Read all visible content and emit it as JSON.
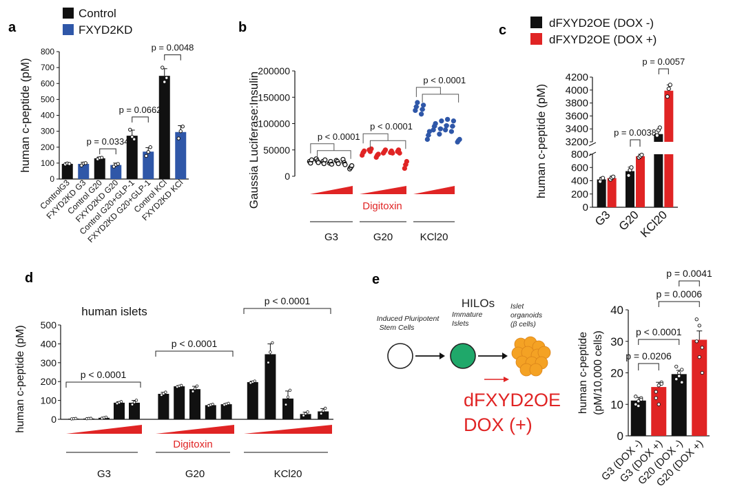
{
  "colors": {
    "black": "#111111",
    "blue": "#2f57a8",
    "red": "#e02424",
    "green": "#1fa86a",
    "orange": "#f4a224",
    "white": "#ffffff"
  },
  "chart_data": [
    {
      "panel": "a",
      "type": "bar",
      "ylabel": "human c-peptide (pM)",
      "ylim": [
        0,
        800
      ],
      "yticks": [
        0,
        100,
        200,
        300,
        400,
        500,
        600,
        700,
        800
      ],
      "legend": [
        {
          "name": "Control",
          "color": "#111111"
        },
        {
          "name": "FXYD2KD",
          "color": "#2f57a8"
        }
      ],
      "categories": [
        "ControlG3",
        "FXYD2KD G3",
        "Control G20",
        "FXYD2KD G20",
        "Control G20+GLP-1",
        "FXYD2KD G20+GLP-1",
        "Control KCl",
        "FXYD2KD KCl"
      ],
      "values": [
        95,
        95,
        130,
        88,
        272,
        172,
        648,
        295
      ],
      "errors": [
        8,
        10,
        8,
        12,
        35,
        25,
        45,
        40
      ],
      "series_of_bar": [
        "Control",
        "FXYD2KD",
        "Control",
        "FXYD2KD",
        "Control",
        "FXYD2KD",
        "Control",
        "FXYD2KD"
      ],
      "points": [
        [
          92,
          98,
          95
        ],
        [
          85,
          98,
          100
        ],
        [
          125,
          132,
          134
        ],
        [
          78,
          90,
          95
        ],
        [
          310,
          265,
          250
        ],
        [
          145,
          170,
          200
        ],
        [
          700,
          610,
          635
        ],
        [
          255,
          300,
          330
        ]
      ],
      "annotations": [
        {
          "text": "p = 0.0334",
          "from": 2,
          "to": 3,
          "level": 190
        },
        {
          "text": "p = 0.0662",
          "from": 4,
          "to": 5,
          "level": 390
        },
        {
          "text": "p = 0.0048",
          "from": 6,
          "to": 7,
          "level": 780
        }
      ]
    },
    {
      "panel": "b",
      "type": "scatter",
      "ylabel": "Gaussia Luciferase:Insulin",
      "ylim": [
        0,
        200000
      ],
      "yticks": [
        0,
        50000,
        100000,
        150000,
        200000
      ],
      "groups": [
        {
          "label": "G3",
          "color": "#111111",
          "values": [
            [
              28000,
              25000,
              31000
            ],
            [
              33000,
              29000,
              26000
            ],
            [
              28000,
              24000,
              31000
            ],
            [
              25000,
              28000,
              23000
            ],
            [
              30000,
              28000,
              24000
            ],
            [
              32000,
              26000,
              22000
            ],
            [
              14000,
              17000,
              20000
            ]
          ]
        },
        {
          "label": "G20",
          "color": "#e02424",
          "values": [
            [
              40000,
              45000,
              48000
            ],
            [
              50000,
              47000,
              52000
            ],
            [
              36000,
              40000,
              42000
            ],
            [
              44000,
              47000,
              50000
            ],
            [
              45000,
              48000,
              44000
            ],
            [
              47000,
              50000,
              44000
            ],
            [
              15000,
              22000,
              28000
            ]
          ]
        },
        {
          "label": "KCl20",
          "color": "#2f57a8",
          "values": [
            [
              125000,
              132000,
              140000
            ],
            [
              118000,
              127000,
              135000
            ],
            [
              70000,
              78000,
              85000
            ],
            [
              88000,
              95000,
              100000
            ],
            [
              80000,
              90000,
              105000
            ],
            [
              88000,
              96000,
              108000
            ],
            [
              85000,
              95000,
              105000
            ],
            [
              65000,
              68000,
              70000
            ]
          ]
        }
      ],
      "treatment_label": "Digitoxin",
      "annotations": [
        {
          "text": "p < 0.0001",
          "group": "G3"
        },
        {
          "text": "p < 0.0001",
          "group": "G20"
        },
        {
          "text": "p < 0.0001",
          "group": "KCl20"
        }
      ]
    },
    {
      "panel": "c",
      "type": "bar",
      "ylabel": "human c-peptide (pM)",
      "ylim_lower": [
        0,
        800
      ],
      "yticks_lower": [
        0,
        200,
        400,
        600,
        800
      ],
      "ylim_upper": [
        3200,
        4200
      ],
      "yticks_upper": [
        3200,
        3400,
        3600,
        3800,
        4000,
        4200
      ],
      "legend": [
        {
          "name": "dFXYD2OE (DOX -)",
          "color": "#111111"
        },
        {
          "name": "dFXYD2OE (DOX +)",
          "color": "#e02424"
        }
      ],
      "categories": [
        "G3",
        "G20",
        "KCl20"
      ],
      "series": [
        {
          "name": "dFXYD2OE (DOX -)",
          "values": [
            420,
            545,
            3320
          ],
          "errors": [
            30,
            60,
            60
          ],
          "points": [
            [
              390,
              430,
              440
            ],
            [
              480,
              560,
              600
            ],
            [
              3300,
              3380,
              3420
            ]
          ]
        },
        {
          "name": "dFXYD2OE (DOX +)",
          "values": [
            440,
            770,
            3990
          ],
          "errors": [
            30,
            30,
            90
          ],
          "points": [
            [
              420,
              445,
              460
            ],
            [
              750,
              770,
              790
            ],
            [
              3900,
              4020,
              4080
            ]
          ]
        }
      ],
      "annotations": [
        {
          "text": "p = 0.0038",
          "category": "G20"
        },
        {
          "text": "p = 0.0057",
          "category": "KCl20"
        }
      ]
    },
    {
      "panel": "d",
      "type": "bar",
      "title": "human islets",
      "ylabel": "human c-peptide (pM)",
      "ylim": [
        0,
        500
      ],
      "yticks": [
        0,
        100,
        200,
        300,
        400,
        500
      ],
      "groups": [
        {
          "label": "G3",
          "values": [
            3,
            4,
            8,
            88,
            88
          ],
          "errors": [
            1,
            1,
            3,
            5,
            12
          ]
        },
        {
          "label": "G20",
          "values": [
            135,
            175,
            160,
            75,
            80
          ],
          "errors": [
            8,
            4,
            15,
            4,
            4
          ]
        },
        {
          "label": "KCl20",
          "values": [
            197,
            345,
            110,
            28,
            42
          ],
          "errors": [
            5,
            55,
            40,
            10,
            15
          ]
        }
      ],
      "treatment_label": "Digitoxin",
      "annotations": [
        {
          "text": "p < 0.0001",
          "group": "G3"
        },
        {
          "text": "p < 0.0001",
          "group": "G20"
        },
        {
          "text": "p < 0.0001",
          "group": "KCl20"
        }
      ]
    },
    {
      "panel": "e",
      "type": "bar",
      "ylabel_line1": "human c-peptide",
      "ylabel_line2": "(pM/10,000 cells)",
      "ylim": [
        0,
        40
      ],
      "yticks": [
        0,
        10,
        20,
        30,
        40
      ],
      "categories": [
        "G3 (DOX -)",
        "G3 (DOX +)",
        "G20 (DOX -)",
        "G20 (DOX +)"
      ],
      "values": [
        11.2,
        15.5,
        19.6,
        30.5
      ],
      "errors": [
        1.0,
        1.5,
        1.2,
        2.8
      ],
      "bar_colors": [
        "#111111",
        "#e02424",
        "#111111",
        "#e02424"
      ],
      "points": [
        [
          10,
          11,
          12,
          12.5,
          9.5,
          11.5
        ],
        [
          12,
          16,
          17,
          14,
          10,
          16.5
        ],
        [
          18,
          20,
          21,
          22,
          19,
          17
        ],
        [
          37,
          35,
          28,
          30,
          25,
          20
        ]
      ],
      "annotations": [
        {
          "text": "p = 0.0206",
          "from": 0,
          "to": 1
        },
        {
          "text": "p < 0.0001",
          "from": 0,
          "to": 2
        },
        {
          "text": "p = 0.0006",
          "from": 1,
          "to": 3
        },
        {
          "text": "p = 0.0041",
          "from": 2,
          "to": 3
        }
      ]
    }
  ],
  "panel_letters": [
    "a",
    "b",
    "c",
    "d",
    "e"
  ],
  "hilos": {
    "title": "HILOs",
    "stages": [
      "Induced Pluripotent Stem Cells",
      "Immature Islets",
      "Islet organoids (β cells)"
    ],
    "treatment_line1": "dFXYD2OE",
    "treatment_line2": "DOX (+)"
  }
}
